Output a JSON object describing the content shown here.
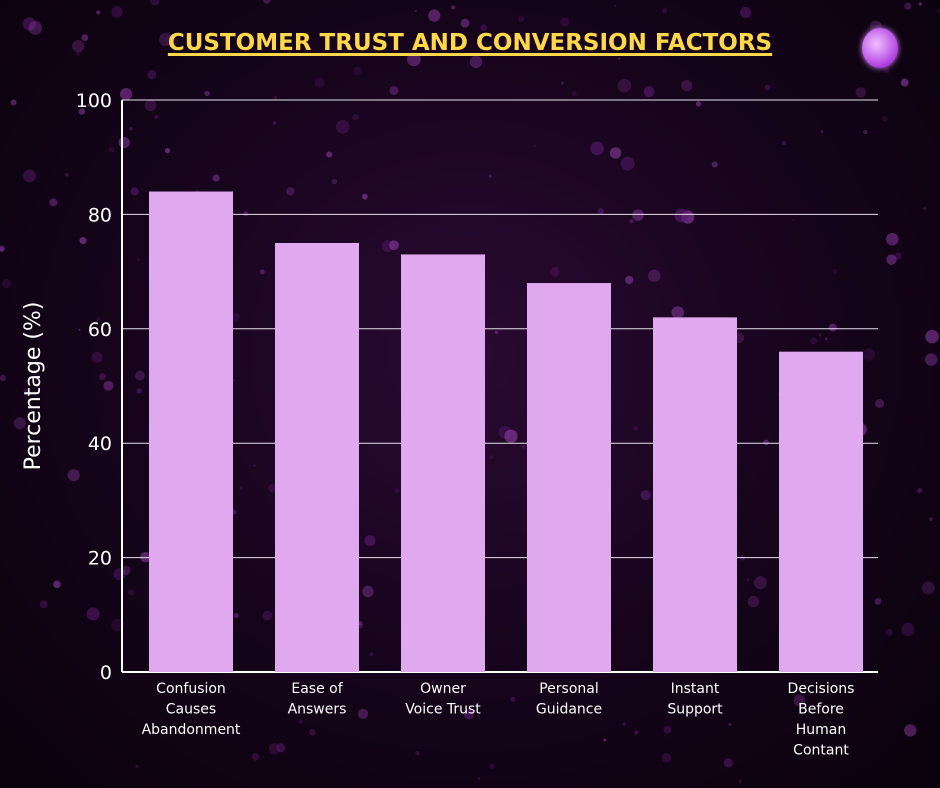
{
  "chart_data": {
    "type": "bar",
    "title": "CUSTOMER TRUST AND CONVERSION FACTORS",
    "xlabel": "",
    "ylabel": "Percentage (%)",
    "ylim": [
      0,
      100
    ],
    "yticks": [
      "0",
      "20",
      "40",
      "60",
      "80",
      "100"
    ],
    "grid": true,
    "categories": [
      [
        "Confusion",
        "Causes",
        "Abandonment"
      ],
      [
        "Ease of",
        "Answers"
      ],
      [
        "Owner",
        "Voice Trust"
      ],
      [
        "Personal",
        "Guidance"
      ],
      [
        "Instant",
        "Support"
      ],
      [
        "Decisions",
        "Before",
        "Human",
        "Contant"
      ]
    ],
    "values": [
      84,
      75,
      73,
      68,
      62,
      56
    ],
    "bar_color": "#e0a8ee",
    "title_color": "#ffd84a"
  },
  "logo": {
    "icon": "brain-icon"
  }
}
